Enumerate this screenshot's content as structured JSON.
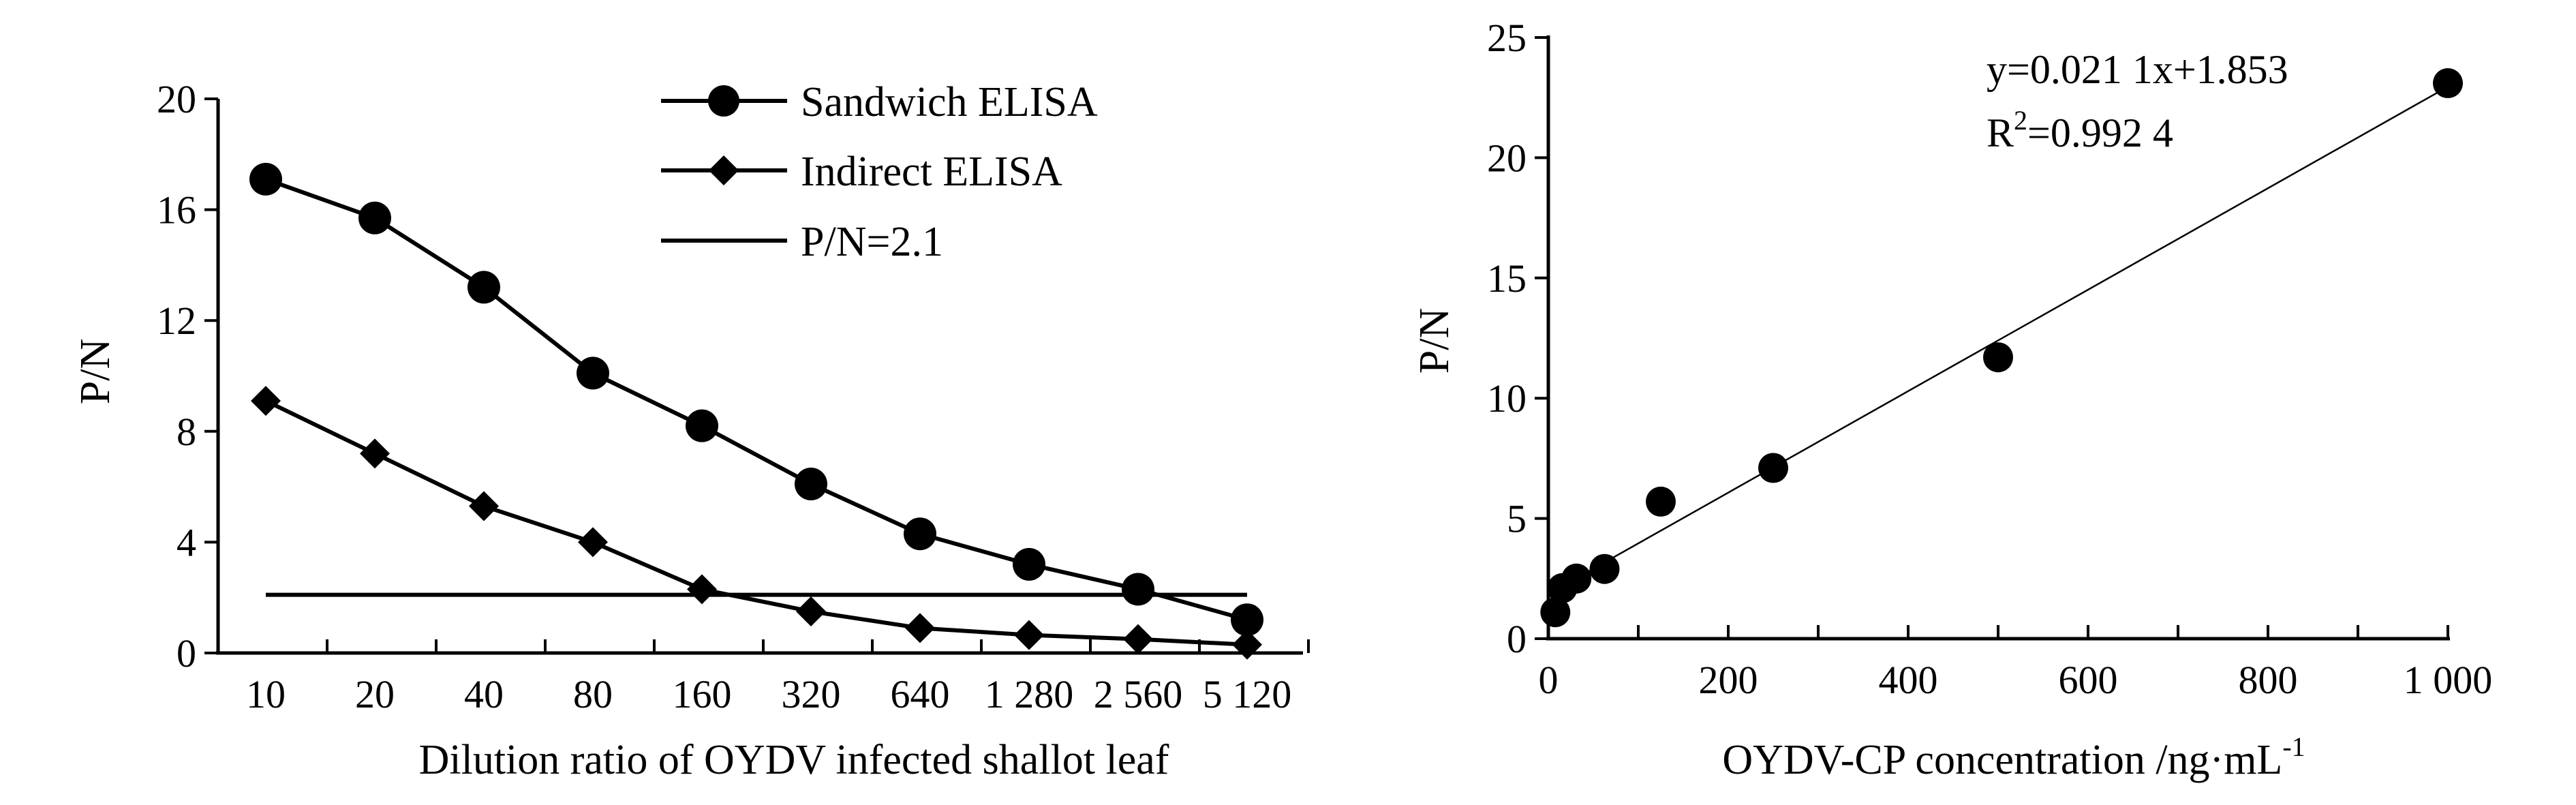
{
  "chart_data": [
    {
      "type": "line",
      "categories": [
        "10",
        "20",
        "40",
        "80",
        "160",
        "320",
        "640",
        "1 280",
        "2 560",
        "5 120"
      ],
      "series": [
        {
          "name": "Sandwich ELISA",
          "marker": "circle",
          "values": [
            17.1,
            15.7,
            13.2,
            10.1,
            8.2,
            6.1,
            4.3,
            3.2,
            2.3,
            1.2
          ]
        },
        {
          "name": "Indirect ELISA",
          "marker": "diamond",
          "values": [
            9.1,
            7.2,
            5.3,
            4.0,
            2.3,
            1.5,
            0.9,
            0.65,
            0.5,
            0.3
          ]
        },
        {
          "name": "P/N=2.1",
          "marker": "none",
          "values": [
            2.1,
            2.1,
            2.1,
            2.1,
            2.1,
            2.1,
            2.1,
            2.1,
            2.1,
            2.1
          ]
        }
      ],
      "xlabel": "Dilution ratio of OYDV infected shallot leaf",
      "ylabel": "P/N",
      "ylim": [
        0,
        20
      ],
      "yticks": [
        "0",
        "4",
        "8",
        "12",
        "16",
        "20"
      ],
      "legend": "top-right"
    },
    {
      "type": "scatter",
      "series": [
        {
          "name": "",
          "x": [
            7.8,
            15.6,
            31.25,
            62.5,
            125,
            250,
            500,
            1000
          ],
          "y": [
            1.1,
            2.1,
            2.5,
            2.9,
            5.7,
            7.1,
            11.7,
            23.1
          ]
        }
      ],
      "fit": {
        "slope": 0.0211,
        "intercept": 1.853
      },
      "annotation_eq": "y=0.021 1x+1.853",
      "annotation_r2_prefix": "R",
      "annotation_r2_sup": "2",
      "annotation_r2_suffix": "=0.992 4",
      "xlabel_main": "OYDV-CP concentration /ng·mL",
      "xlabel_sup": "-1",
      "ylabel": "P/N",
      "xlim": [
        0,
        1000
      ],
      "ylim": [
        0,
        25
      ],
      "xticks": [
        "0",
        "200",
        "400",
        "600",
        "800",
        "1 000"
      ],
      "yticks": [
        "0",
        "5",
        "10",
        "15",
        "20",
        "25"
      ]
    }
  ]
}
